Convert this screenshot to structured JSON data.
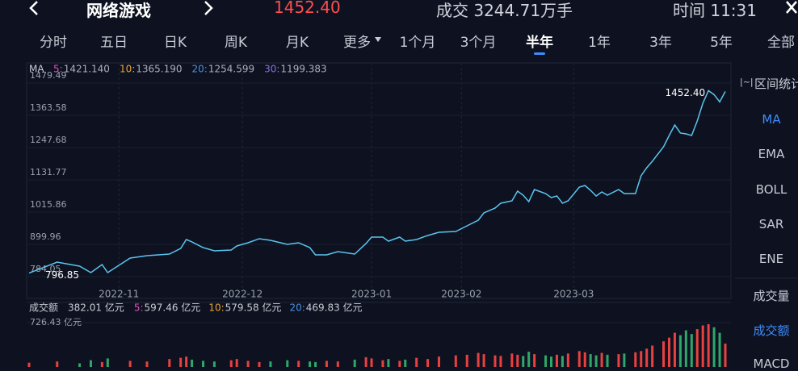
{
  "header": {
    "title": "网络游戏",
    "price": "1452.40",
    "turnover": "成交 3244.71万手",
    "time": "时间 11:31"
  },
  "tabs": [
    "分时",
    "五日",
    "日K",
    "周K",
    "月K",
    "更多",
    "1个月",
    "3个月",
    "半年",
    "1年",
    "3年",
    "5年",
    "全部"
  ],
  "active_tab": 8,
  "sidebar": {
    "title": "区间统计",
    "items": [
      {
        "label": "MA",
        "active": true
      },
      {
        "label": "EMA",
        "active": false
      },
      {
        "label": "BOLL",
        "active": false
      },
      {
        "label": "SAR",
        "active": false
      },
      {
        "label": "ENE",
        "active": false
      }
    ],
    "items2": [
      {
        "label": "成交量",
        "active": false
      },
      {
        "label": "成交额",
        "active": true
      },
      {
        "label": "MACD",
        "active": false
      }
    ]
  },
  "chart_data": [
    {
      "type": "line",
      "legend_title": "MA",
      "color": "#5bc4ee",
      "ma": [
        {
          "name": "5:",
          "value": "1421.140",
          "color": "#e04fbf"
        },
        {
          "name": "10:",
          "value": "1365.190",
          "color": "#e8a33d"
        },
        {
          "name": "20:",
          "value": "1254.599",
          "color": "#4a8ee0"
        },
        {
          "name": "30:",
          "value": "1199.383",
          "color": "#8a6ee0"
        }
      ],
      "x": [
        0,
        5,
        9,
        11,
        13,
        14,
        18,
        21,
        25,
        27,
        28,
        29,
        31,
        33,
        36,
        37,
        39,
        41,
        43,
        46,
        48,
        50,
        51,
        53,
        55,
        58,
        60,
        61,
        63,
        64,
        66,
        67,
        69,
        71,
        73,
        76,
        78,
        80,
        81,
        83,
        84,
        86,
        87,
        88,
        89,
        90,
        92,
        93,
        94,
        95,
        96,
        98,
        99,
        100,
        101,
        102,
        103,
        105,
        106,
        108,
        109,
        110,
        111,
        113,
        114,
        115,
        116,
        117,
        118,
        119,
        120,
        121,
        122,
        123,
        124
      ],
      "values": [
        796.85,
        836.2,
        821.7,
        798.5,
        827.5,
        798.5,
        850.7,
        859.4,
        865.2,
        885.5,
        917.4,
        908.7,
        888.4,
        876.8,
        879.7,
        894.2,
        905.8,
        920.3,
        914.5,
        900.0,
        905.8,
        888.4,
        862.3,
        862.3,
        873.9,
        865.2,
        902.9,
        926.0,
        926.0,
        911.6,
        926.0,
        911.6,
        917.4,
        931.9,
        943.4,
        946.3,
        966.6,
        986.9,
        1013.0,
        1030.4,
        1047.8,
        1056.5,
        1091.2,
        1076.7,
        1053.6,
        1097.0,
        1082.5,
        1068.1,
        1073.9,
        1047.8,
        1056.5,
        1105.7,
        1111.5,
        1094.1,
        1073.9,
        1088.3,
        1076.7,
        1097.0,
        1082.5,
        1082.5,
        1146.3,
        1175.3,
        1198.5,
        1250.6,
        1291.2,
        1328.9,
        1299.9,
        1297.0,
        1291.2,
        1343.4,
        1407.1,
        1452.4,
        1437.9,
        1411.8,
        1449.5
      ],
      "value_labels": [
        "796.85",
        null,
        null,
        null,
        null,
        null,
        null,
        null,
        null,
        null,
        null,
        null,
        null,
        null,
        null,
        null,
        null,
        null,
        null,
        null,
        null,
        null,
        null,
        null,
        null,
        null,
        null,
        null,
        null,
        null,
        null,
        null,
        null,
        null,
        null,
        null,
        null,
        null,
        null,
        null,
        null,
        null,
        null,
        null,
        null,
        null,
        null,
        null,
        null,
        null,
        null,
        null,
        null,
        null,
        null,
        null,
        null,
        null,
        null,
        null,
        null,
        null,
        null,
        null,
        null,
        null,
        null,
        null,
        null,
        null,
        null,
        "1452.40",
        null,
        null,
        null
      ],
      "xlim": [
        0,
        124
      ],
      "ylim": [
        784.05,
        1479.49
      ],
      "yticks": [
        1479.49,
        1363.58,
        1247.68,
        1131.77,
        1015.86,
        899.96,
        784.05
      ],
      "xticks": [
        {
          "value": 16,
          "label": "2022-11"
        },
        {
          "value": 38,
          "label": "2022-12"
        },
        {
          "value": 61,
          "label": "2023-01"
        },
        {
          "value": 77,
          "label": "2023-02"
        },
        {
          "value": 97,
          "label": "2023-03"
        }
      ]
    },
    {
      "type": "bar",
      "title": "成交额",
      "current": "382.01 亿元",
      "up_color": "#e8413f",
      "down_color": "#2fa66b",
      "ma": [
        {
          "name": "5:",
          "value": "597.46 亿元",
          "color": "#e04fbf"
        },
        {
          "name": "10:",
          "value": "579.58 亿元",
          "color": "#e8a33d"
        },
        {
          "name": "20:",
          "value": "469.83 亿元",
          "color": "#4a8ee0"
        }
      ],
      "values": [
        70,
        90,
        60,
        110,
        80,
        140,
        100,
        90,
        130,
        150,
        170,
        120,
        100,
        90,
        110,
        130,
        100,
        80,
        90,
        110,
        100,
        90,
        80,
        100,
        90,
        120,
        160,
        140,
        110,
        130,
        100,
        120,
        150,
        130,
        170,
        190,
        200,
        230,
        210,
        190,
        180,
        220,
        200,
        180,
        250,
        210,
        190,
        170,
        200,
        180,
        220,
        260,
        240,
        210,
        190,
        230,
        200,
        210,
        220,
        240,
        260,
        300,
        350,
        420,
        480,
        560,
        520,
        600,
        540,
        620,
        680,
        700,
        650,
        560,
        382.01
      ],
      "ylim": [
        0,
        726.43
      ],
      "yticks": [
        {
          "value": 726.43,
          "label": "726.43 亿元"
        }
      ]
    }
  ]
}
